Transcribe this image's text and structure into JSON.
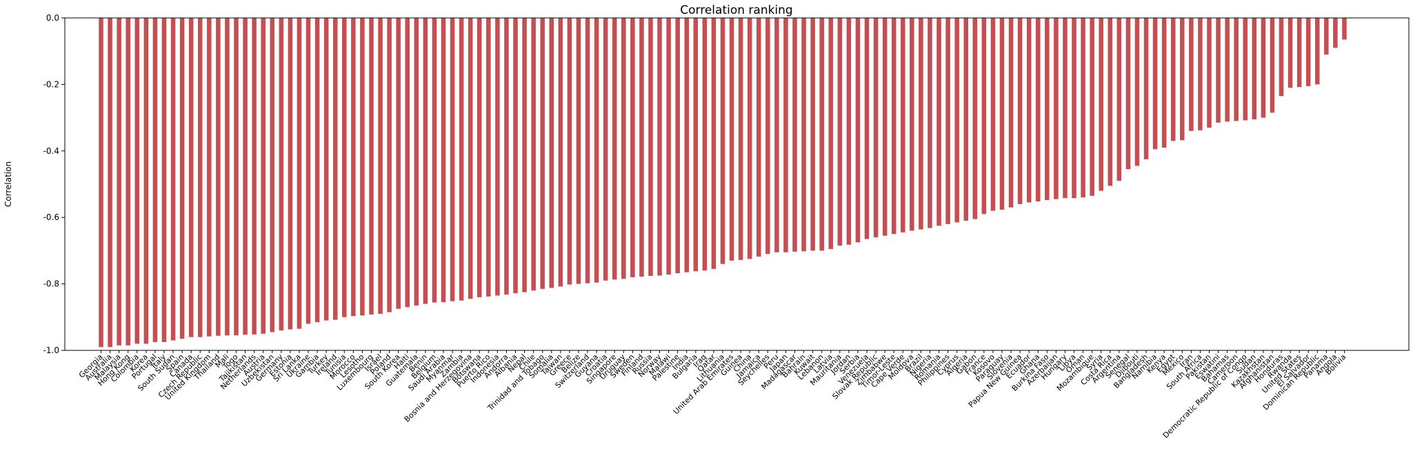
{
  "chart_data": {
    "type": "bar",
    "title": "Correlation ranking",
    "y_label": "Correlation",
    "color": "#c44e52",
    "categories": [
      "Georgia",
      "Australia",
      "Malaysia",
      "Hong Kong",
      "Colombia",
      "Korea",
      "Portugal",
      "Italy",
      "South Sudan",
      "Spain",
      "Canada",
      "Czech Republic",
      "United Kingdom",
      "Thailand",
      "Mali",
      "Togo",
      "Tajikistan",
      "Netherlands",
      "Austria",
      "Uzbekistan",
      "Germany",
      "Estonia",
      "Sri Lanka",
      "Ukraine",
      "Gambia",
      "Turkey",
      "Ireland",
      "Tunisia",
      "Morocco",
      "Lesotho",
      "Luxembourg",
      "Israel",
      "Poland",
      "South Korea",
      "Haiti",
      "Guatemala",
      "Benin",
      "Belgium",
      "Saudi Arabia",
      "Myanmar",
      "Zambia",
      "Bosnia and Herzegovina",
      "Botswana",
      "Puerto Rico",
      "Indonesia",
      "Andorra",
      "Albania",
      "Nepal",
      "Chile",
      "Trinidad and Tobago",
      "Somalia",
      "Taiwan",
      "Greece",
      "Belize",
      "Switzerland",
      "Guyana",
      "Croatia",
      "Singapore",
      "Uruguay",
      "Sweden",
      "Finland",
      "Russia",
      "Norway",
      "Malawi",
      "Palestine",
      "India",
      "Bulgaria",
      "Iraq",
      "Qatar",
      "Lithuania",
      "United Arab Emirates",
      "Guinea",
      "China",
      "Jamaica",
      "Seychelles",
      "Peru",
      "Japan",
      "Madagascar",
      "Bahrain",
      "Kuwait",
      "Lebanon",
      "Latvia",
      "Mauritania",
      "Jordan",
      "Serbia",
      "Venezuela",
      "Slovak Republic",
      "Zimbabwe",
      "Timor-Leste",
      "Cape Verde",
      "Moldova",
      "Brazil",
      "Nigeria",
      "Romania",
      "Philippines",
      "Cyprus",
      "Algeria",
      "Gabon",
      "France",
      "Kosovo",
      "Paraguay",
      "Slovenia",
      "Papua New Guinea",
      "Ecuador",
      "Ghana",
      "Burkina Faso",
      "Azerbaijan",
      "Hungary",
      "Libya",
      "Oman",
      "Mozambique",
      "Syria",
      "Costa Rica",
      "Argentina",
      "Senegal",
      "Djibouti",
      "Bangladesh",
      "Namibia",
      "Kenya",
      "Egypt",
      "Mexico",
      "Iran",
      "South Africa",
      "Pakistan",
      "Eswatini",
      "Bahamas",
      "Cameroon",
      "Democratic Republic of Congo",
      "Sudan",
      "Kazakhstan",
      "Afghanistan",
      "Honduras",
      "Rwanda",
      "United States",
      "El Salvador",
      "Dominican Republic",
      "Panama",
      "Angola",
      "Bolivia"
    ],
    "values": [
      -0.99,
      -0.99,
      -0.985,
      -0.985,
      -0.98,
      -0.98,
      -0.975,
      -0.975,
      -0.97,
      -0.965,
      -0.96,
      -0.96,
      -0.958,
      -0.956,
      -0.955,
      -0.955,
      -0.953,
      -0.952,
      -0.95,
      -0.945,
      -0.94,
      -0.937,
      -0.935,
      -0.92,
      -0.915,
      -0.91,
      -0.908,
      -0.9,
      -0.897,
      -0.895,
      -0.892,
      -0.89,
      -0.885,
      -0.875,
      -0.87,
      -0.865,
      -0.86,
      -0.856,
      -0.855,
      -0.852,
      -0.85,
      -0.845,
      -0.84,
      -0.838,
      -0.835,
      -0.832,
      -0.828,
      -0.825,
      -0.82,
      -0.815,
      -0.812,
      -0.808,
      -0.802,
      -0.8,
      -0.798,
      -0.796,
      -0.79,
      -0.787,
      -0.785,
      -0.78,
      -0.778,
      -0.776,
      -0.775,
      -0.772,
      -0.768,
      -0.765,
      -0.762,
      -0.76,
      -0.755,
      -0.74,
      -0.73,
      -0.728,
      -0.725,
      -0.718,
      -0.71,
      -0.705,
      -0.705,
      -0.703,
      -0.702,
      -0.7,
      -0.7,
      -0.695,
      -0.685,
      -0.682,
      -0.675,
      -0.665,
      -0.66,
      -0.655,
      -0.65,
      -0.645,
      -0.64,
      -0.636,
      -0.632,
      -0.625,
      -0.62,
      -0.615,
      -0.61,
      -0.605,
      -0.59,
      -0.58,
      -0.577,
      -0.57,
      -0.56,
      -0.555,
      -0.552,
      -0.548,
      -0.545,
      -0.542,
      -0.542,
      -0.54,
      -0.535,
      -0.52,
      -0.505,
      -0.49,
      -0.455,
      -0.445,
      -0.425,
      -0.395,
      -0.39,
      -0.37,
      -0.368,
      -0.34,
      -0.338,
      -0.33,
      -0.315,
      -0.312,
      -0.31,
      -0.308,
      -0.305,
      -0.3,
      -0.285,
      -0.235,
      -0.21,
      -0.208,
      -0.205,
      -0.2,
      -0.11,
      -0.09,
      -0.065
    ],
    "ylim": [
      -1,
      0
    ],
    "yticks": [
      {
        "value": -1,
        "label": "-1.0"
      },
      -0.8,
      -0.6,
      -0.4,
      -0.2,
      {
        "value": 0,
        "label": "0.0"
      }
    ]
  }
}
